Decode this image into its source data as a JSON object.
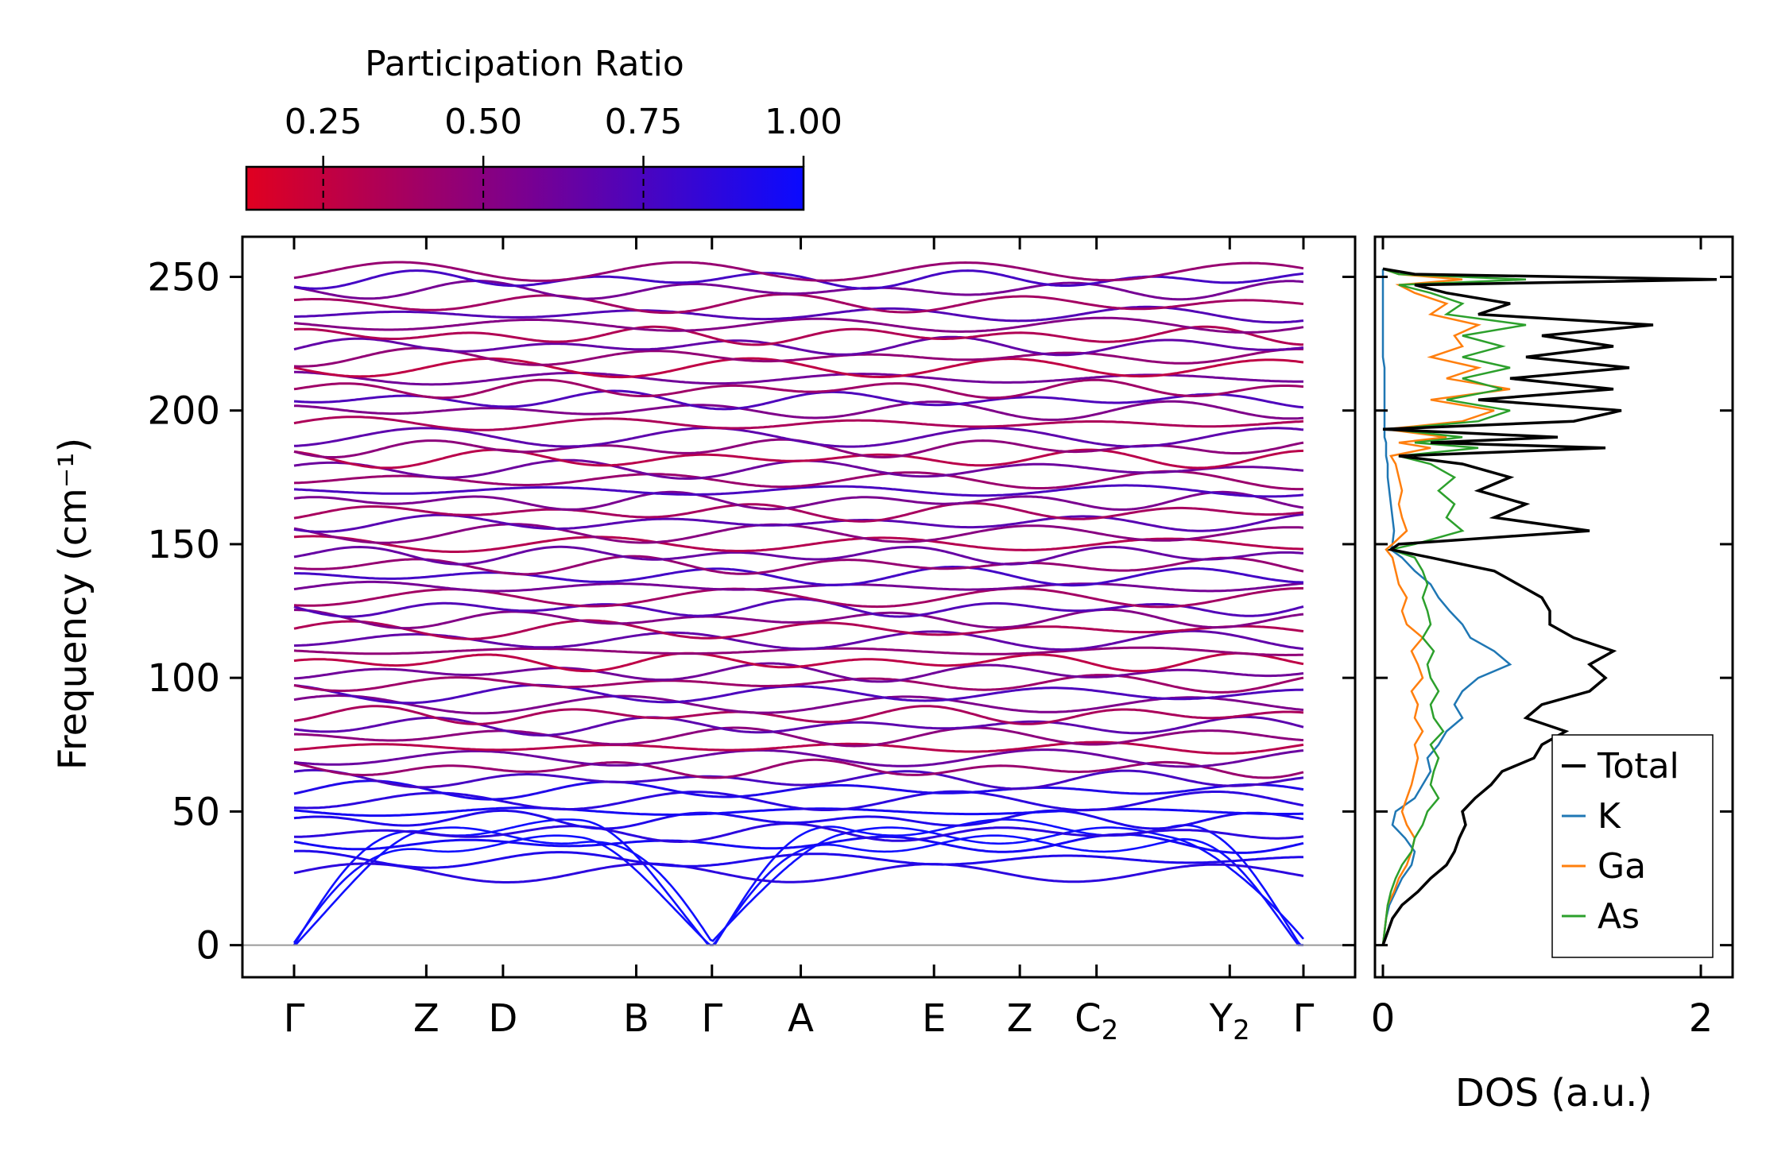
{
  "chart_data": [
    {
      "type": "line",
      "title": "",
      "description_series": "phonon dispersion bands colored by participation ratio",
      "xlabel": "",
      "ylabel": "Frequency (cm⁻¹)",
      "ylim": [
        -12,
        265
      ],
      "yticks": [
        0,
        50,
        100,
        150,
        200,
        250
      ],
      "ytick_labels": [
        "0",
        "50",
        "100",
        "150",
        "200",
        "250"
      ],
      "kpath": [
        {
          "label": "Γ",
          "sub": "",
          "pos": 0.0
        },
        {
          "label": "Z",
          "sub": "",
          "pos": 0.131
        },
        {
          "label": "D",
          "sub": "",
          "pos": 0.207
        },
        {
          "label": "B",
          "sub": "",
          "pos": 0.339
        },
        {
          "label": "Γ",
          "sub": "",
          "pos": 0.414
        },
        {
          "label": "A",
          "sub": "",
          "pos": 0.502
        },
        {
          "label": "E",
          "sub": "",
          "pos": 0.634
        },
        {
          "label": "Z",
          "sub": "",
          "pos": 0.719
        },
        {
          "label": "C",
          "sub": "2",
          "pos": 0.795
        },
        {
          "label": "Y",
          "sub": "2",
          "pos": 0.927
        },
        {
          "label": "Γ",
          "sub": "",
          "pos": 1.0
        }
      ],
      "zero_line": 0,
      "optical_band_levels": [
        27,
        32,
        38,
        42,
        47,
        50,
        54,
        58,
        62,
        66,
        70,
        74,
        78,
        82,
        86,
        90,
        94,
        98,
        102,
        106,
        110,
        114,
        118,
        122,
        126,
        130,
        134,
        138,
        142,
        146,
        150,
        154,
        158,
        162,
        166,
        170,
        174,
        178,
        182,
        186,
        190,
        195,
        200,
        204,
        208,
        212,
        216,
        220,
        224,
        228,
        232,
        236,
        240,
        245,
        249,
        252
      ],
      "colorbar": {
        "label": "Participation Ratio",
        "ticks": [
          0.25,
          0.5,
          0.75,
          1.0
        ],
        "tick_labels": [
          "0.25",
          "0.50",
          "0.75",
          "1.00"
        ],
        "range": [
          0.13,
          1.0
        ],
        "low_color": "#e00020",
        "high_color": "#1010ff"
      }
    },
    {
      "type": "line",
      "xlabel": "DOS (a.u.)",
      "xlim": [
        -0.05,
        2.2
      ],
      "xticks": [
        0,
        2
      ],
      "xtick_labels": [
        "0",
        "2"
      ],
      "ylim": [
        -12,
        265
      ],
      "legend_position": "lower-right",
      "frequency": [
        0,
        5,
        10,
        15,
        20,
        25,
        30,
        35,
        40,
        45,
        50,
        55,
        60,
        65,
        70,
        75,
        80,
        85,
        90,
        95,
        100,
        105,
        110,
        115,
        120,
        125,
        130,
        135,
        140,
        145,
        148,
        150,
        155,
        160,
        165,
        170,
        175,
        180,
        183,
        186,
        188,
        190,
        193,
        196,
        200,
        204,
        208,
        212,
        216,
        220,
        224,
        228,
        232,
        236,
        240,
        244,
        247,
        249,
        251,
        253
      ],
      "series": [
        {
          "name": "Total",
          "color": "#000000",
          "values": [
            0.0,
            0.03,
            0.06,
            0.12,
            0.22,
            0.3,
            0.4,
            0.45,
            0.48,
            0.52,
            0.5,
            0.58,
            0.68,
            0.75,
            0.95,
            1.0,
            1.15,
            0.9,
            1.0,
            1.3,
            1.4,
            1.3,
            1.45,
            1.2,
            1.05,
            1.05,
            1.0,
            0.85,
            0.7,
            0.3,
            0.05,
            0.1,
            1.3,
            0.7,
            0.9,
            0.6,
            0.8,
            0.5,
            0.1,
            1.4,
            0.3,
            1.1,
            0.0,
            1.2,
            1.5,
            0.6,
            1.45,
            0.8,
            1.55,
            0.9,
            1.45,
            1.0,
            1.7,
            0.6,
            0.8,
            0.4,
            0.2,
            2.1,
            0.2,
            0.0
          ]
        },
        {
          "name": "K",
          "color": "#1f77b4",
          "values": [
            0.0,
            0.01,
            0.02,
            0.04,
            0.08,
            0.12,
            0.18,
            0.2,
            0.14,
            0.06,
            0.08,
            0.2,
            0.25,
            0.3,
            0.28,
            0.35,
            0.4,
            0.5,
            0.45,
            0.5,
            0.6,
            0.8,
            0.7,
            0.55,
            0.5,
            0.42,
            0.35,
            0.3,
            0.2,
            0.12,
            0.05,
            0.06,
            0.07,
            0.06,
            0.05,
            0.04,
            0.03,
            0.03,
            0.02,
            0.02,
            0.02,
            0.01,
            0.01,
            0.01,
            0.01,
            0.01,
            0.01,
            0.01,
            0.01,
            0.0,
            0.0,
            0.0,
            0.0,
            0.0,
            0.0,
            0.0,
            0.0,
            0.0,
            0.0,
            0.0
          ]
        },
        {
          "name": "Ga",
          "color": "#ff7f0e",
          "values": [
            0.0,
            0.01,
            0.02,
            0.03,
            0.07,
            0.1,
            0.15,
            0.18,
            0.2,
            0.15,
            0.12,
            0.15,
            0.18,
            0.2,
            0.22,
            0.2,
            0.25,
            0.2,
            0.22,
            0.18,
            0.25,
            0.22,
            0.18,
            0.25,
            0.15,
            0.12,
            0.15,
            0.1,
            0.08,
            0.06,
            0.02,
            0.06,
            0.15,
            0.12,
            0.1,
            0.12,
            0.1,
            0.08,
            0.05,
            0.3,
            0.1,
            0.4,
            0.02,
            0.5,
            0.7,
            0.3,
            0.8,
            0.4,
            0.6,
            0.3,
            0.5,
            0.45,
            0.6,
            0.3,
            0.4,
            0.2,
            0.1,
            0.5,
            0.1,
            0.0
          ]
        },
        {
          "name": "As",
          "color": "#2ca02c",
          "values": [
            0.0,
            0.01,
            0.02,
            0.03,
            0.05,
            0.08,
            0.12,
            0.18,
            0.2,
            0.25,
            0.28,
            0.35,
            0.3,
            0.32,
            0.35,
            0.3,
            0.38,
            0.32,
            0.3,
            0.35,
            0.3,
            0.28,
            0.32,
            0.25,
            0.3,
            0.28,
            0.25,
            0.28,
            0.25,
            0.2,
            0.05,
            0.2,
            0.5,
            0.4,
            0.45,
            0.35,
            0.45,
            0.3,
            0.1,
            0.6,
            0.2,
            0.5,
            0.05,
            0.6,
            0.8,
            0.4,
            0.75,
            0.5,
            0.8,
            0.5,
            0.75,
            0.5,
            0.9,
            0.4,
            0.5,
            0.3,
            0.1,
            0.9,
            0.1,
            0.0
          ]
        }
      ]
    }
  ]
}
